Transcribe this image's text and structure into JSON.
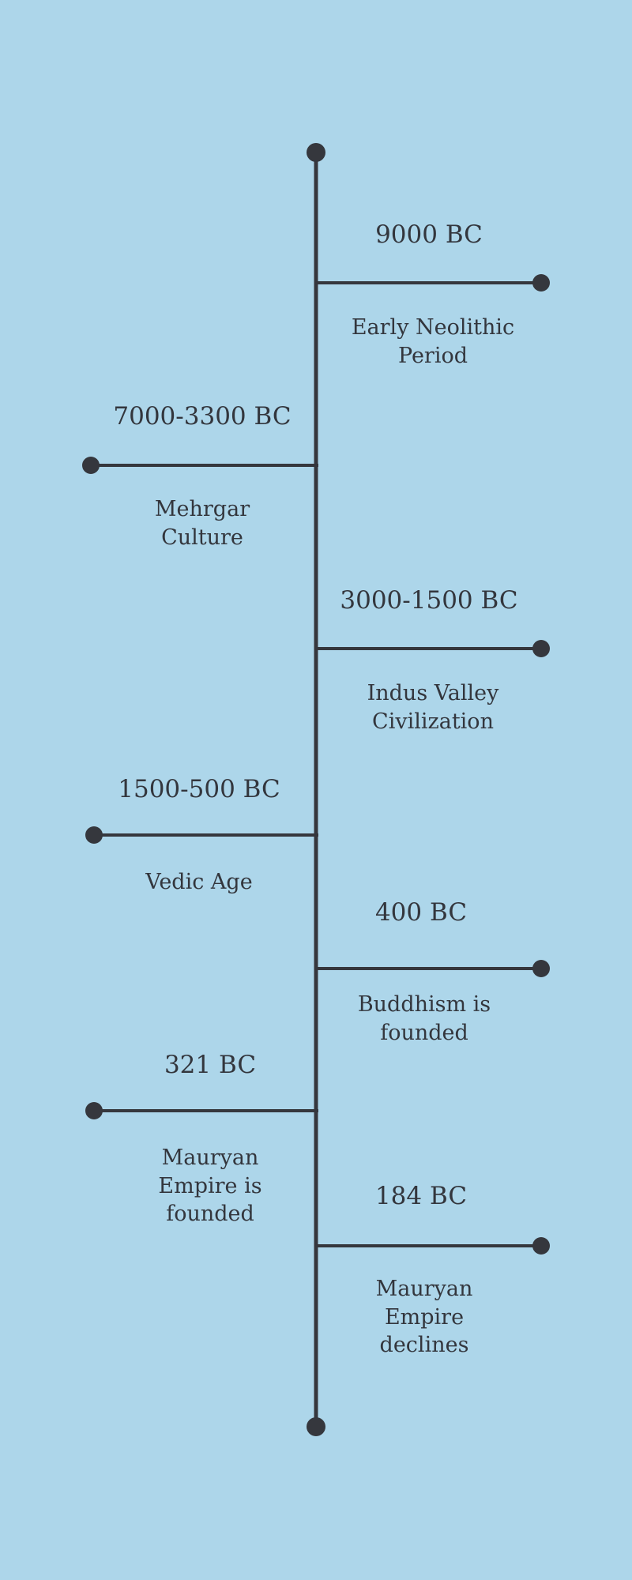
{
  "colors": {
    "background": "#add6ea",
    "line": "#35373d",
    "text": "#33363d"
  },
  "events": [
    {
      "date": "9000 BC",
      "description": "Early Neolithic\nPeriod",
      "side": "right"
    },
    {
      "date": "7000-3300 BC",
      "description": "Mehrgar\nCulture",
      "side": "left"
    },
    {
      "date": "3000-1500 BC",
      "description": "Indus Valley\nCivilization",
      "side": "right"
    },
    {
      "date": "1500-500 BC",
      "description": "Vedic Age",
      "side": "left"
    },
    {
      "date": "400 BC",
      "description": "Buddhism is\nfounded",
      "side": "right"
    },
    {
      "date": "321 BC",
      "description": "Mauryan\nEmpire is\nfounded",
      "side": "left"
    },
    {
      "date": "184 BC",
      "description": "Mauryan\nEmpire\ndeclines",
      "side": "right"
    }
  ]
}
